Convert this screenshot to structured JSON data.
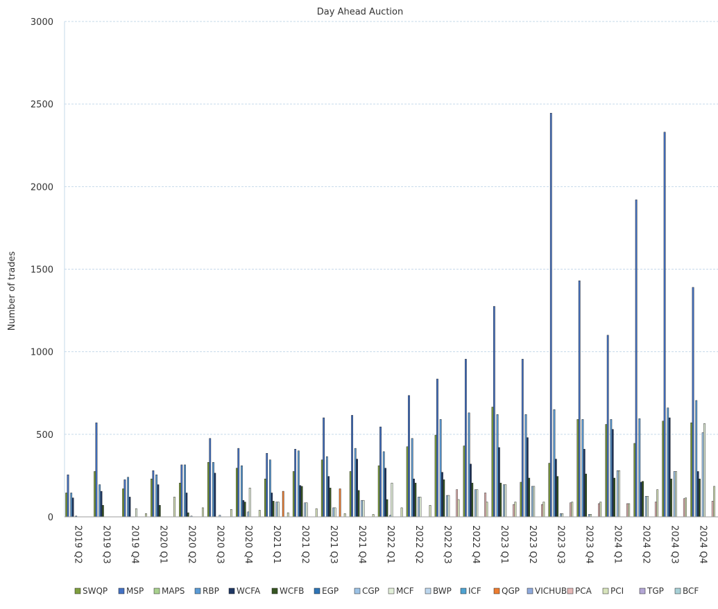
{
  "chart_data": {
    "type": "bar",
    "title": "Day Ahead Auction",
    "ylabel": "Number of trades",
    "xlabel": "",
    "ylim": [
      0,
      3000
    ],
    "yticks": [
      0,
      500,
      1000,
      1500,
      2000,
      2500,
      3000
    ],
    "grid": "horizontal dashed",
    "legend_position": "bottom",
    "categories": [
      "2019 Q2",
      "2019 Q3",
      "2019 Q4",
      "2020 Q1",
      "2020 Q2",
      "2020 Q3",
      "2020 Q4",
      "2021 Q1",
      "2021 Q2",
      "2021 Q3",
      "2021 Q4",
      "2022 Q1",
      "2022 Q2",
      "2022 Q3",
      "2022 Q4",
      "2023 Q1",
      "2023 Q2",
      "2023 Q3",
      "2023 Q4",
      "2024 Q1",
      "2024 Q2",
      "2024 Q3",
      "2024 Q4"
    ],
    "series": [
      {
        "name": "SWQP",
        "color": "#7f9f3f",
        "values": [
          145,
          275,
          170,
          230,
          205,
          330,
          295,
          230,
          275,
          345,
          275,
          310,
          425,
          495,
          430,
          665,
          210,
          325,
          590,
          560,
          445,
          580,
          570
        ]
      },
      {
        "name": "MSP",
        "color": "#4472c4",
        "values": [
          255,
          570,
          225,
          280,
          315,
          475,
          415,
          385,
          410,
          600,
          615,
          545,
          735,
          835,
          955,
          1275,
          955,
          2445,
          1430,
          1100,
          1920,
          2330,
          1390
        ]
      },
      {
        "name": "MAPS",
        "color": "#a9d18e",
        "values": [
          0,
          0,
          0,
          0,
          0,
          0,
          0,
          0,
          0,
          0,
          0,
          0,
          0,
          0,
          0,
          0,
          0,
          0,
          0,
          0,
          0,
          0,
          0
        ]
      },
      {
        "name": "RBP",
        "color": "#5b9bd5",
        "values": [
          145,
          195,
          240,
          255,
          315,
          330,
          310,
          345,
          400,
          365,
          415,
          395,
          475,
          590,
          630,
          620,
          620,
          650,
          590,
          590,
          595,
          660,
          705
        ]
      },
      {
        "name": "WCFA",
        "color": "#1f3864",
        "values": [
          115,
          155,
          120,
          195,
          145,
          265,
          100,
          145,
          190,
          245,
          350,
          295,
          230,
          270,
          320,
          420,
          480,
          350,
          410,
          530,
          210,
          600,
          275
        ]
      },
      {
        "name": "WCFB",
        "color": "#375623",
        "values": [
          0,
          70,
          0,
          70,
          25,
          0,
          90,
          95,
          185,
          175,
          160,
          105,
          205,
          225,
          205,
          205,
          235,
          245,
          260,
          235,
          215,
          230,
          230
        ]
      },
      {
        "name": "EGP",
        "color": "#2e75b6",
        "values": [
          5,
          0,
          0,
          0,
          0,
          0,
          0,
          0,
          0,
          0,
          0,
          0,
          0,
          0,
          0,
          0,
          0,
          0,
          0,
          0,
          0,
          0,
          0
        ]
      },
      {
        "name": "CGP",
        "color": "#9dc3e6",
        "values": [
          0,
          0,
          0,
          0,
          5,
          10,
          30,
          90,
          85,
          55,
          100,
          10,
          120,
          130,
          165,
          195,
          185,
          20,
          15,
          280,
          125,
          275,
          510
        ]
      },
      {
        "name": "MCF",
        "color": "#e2efd9",
        "values": [
          0,
          0,
          50,
          0,
          0,
          0,
          175,
          90,
          85,
          55,
          100,
          205,
          120,
          130,
          165,
          195,
          185,
          20,
          15,
          280,
          125,
          275,
          565
        ]
      },
      {
        "name": "BWP",
        "color": "#bdd7ee",
        "values": [
          0,
          0,
          0,
          0,
          0,
          0,
          0,
          0,
          0,
          0,
          0,
          0,
          0,
          0,
          0,
          0,
          0,
          0,
          0,
          0,
          0,
          0,
          0
        ]
      },
      {
        "name": "ICF",
        "color": "#4fa3d1",
        "values": [
          0,
          0,
          0,
          0,
          0,
          0,
          0,
          0,
          0,
          0,
          0,
          0,
          0,
          0,
          0,
          0,
          0,
          0,
          0,
          0,
          0,
          0,
          0
        ]
      },
      {
        "name": "QGP",
        "color": "#ed7d31",
        "values": [
          0,
          0,
          0,
          0,
          0,
          0,
          0,
          155,
          0,
          170,
          0,
          0,
          0,
          0,
          0,
          0,
          0,
          0,
          0,
          0,
          0,
          0,
          0
        ]
      },
      {
        "name": "VICHUB",
        "color": "#8faadc",
        "values": [
          0,
          0,
          0,
          0,
          0,
          0,
          0,
          0,
          0,
          0,
          0,
          0,
          0,
          0,
          0,
          0,
          0,
          0,
          0,
          0,
          0,
          0,
          0
        ]
      },
      {
        "name": "PCA",
        "color": "#e6b8b7",
        "values": [
          0,
          0,
          0,
          0,
          0,
          0,
          0,
          0,
          0,
          0,
          0,
          0,
          0,
          165,
          145,
          75,
          75,
          85,
          80,
          80,
          90,
          110,
          95
        ]
      },
      {
        "name": "PCI",
        "color": "#d8e4bc",
        "values": [
          0,
          0,
          20,
          120,
          55,
          45,
          40,
          25,
          50,
          20,
          15,
          55,
          70,
          105,
          90,
          90,
          90,
          90,
          90,
          80,
          165,
          115,
          185
        ]
      },
      {
        "name": "TGP",
        "color": "#b4a7d6",
        "values": [
          0,
          0,
          0,
          0,
          0,
          0,
          0,
          0,
          0,
          0,
          0,
          0,
          0,
          0,
          0,
          0,
          0,
          0,
          0,
          0,
          0,
          0,
          0
        ]
      },
      {
        "name": "BCF",
        "color": "#a8d1d7",
        "values": [
          0,
          0,
          0,
          0,
          0,
          0,
          0,
          0,
          0,
          0,
          0,
          0,
          0,
          0,
          0,
          0,
          0,
          0,
          0,
          0,
          0,
          0,
          0
        ]
      }
    ]
  }
}
